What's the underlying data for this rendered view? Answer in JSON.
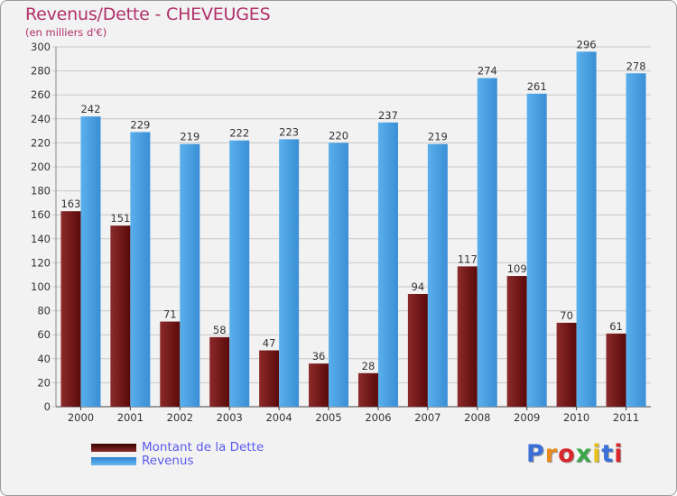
{
  "chart_data": {
    "type": "bar",
    "title": "Revenus/Dette - CHEVEUGES",
    "subtitle": "(en milliers d'€)",
    "categories": [
      "2000",
      "2001",
      "2002",
      "2003",
      "2004",
      "2005",
      "2006",
      "2007",
      "2008",
      "2009",
      "2010",
      "2011"
    ],
    "series": [
      {
        "name": "Montant de la Dette",
        "color": "#7a1a1a",
        "values": [
          163,
          151,
          71,
          58,
          47,
          36,
          28,
          94,
          117,
          109,
          70,
          61
        ]
      },
      {
        "name": "Revenus",
        "color": "#4a9fe0",
        "values": [
          242,
          229,
          219,
          222,
          223,
          220,
          237,
          219,
          274,
          261,
          296,
          278
        ]
      }
    ],
    "ylim": [
      0,
      300
    ],
    "yticks": [
      0,
      20,
      40,
      60,
      80,
      100,
      120,
      140,
      160,
      180,
      200,
      220,
      240,
      260,
      280,
      300
    ],
    "grid": true,
    "legend_position": "bottom-left"
  },
  "logo": {
    "letters": [
      "P",
      "r",
      "o",
      "x",
      "i",
      "t",
      "i"
    ],
    "colors": [
      "#3a6fd8",
      "#e8891c",
      "#d8262c",
      "#3aa84a",
      "#e8c21c",
      "#3a6fd8",
      "#d8262c"
    ]
  }
}
